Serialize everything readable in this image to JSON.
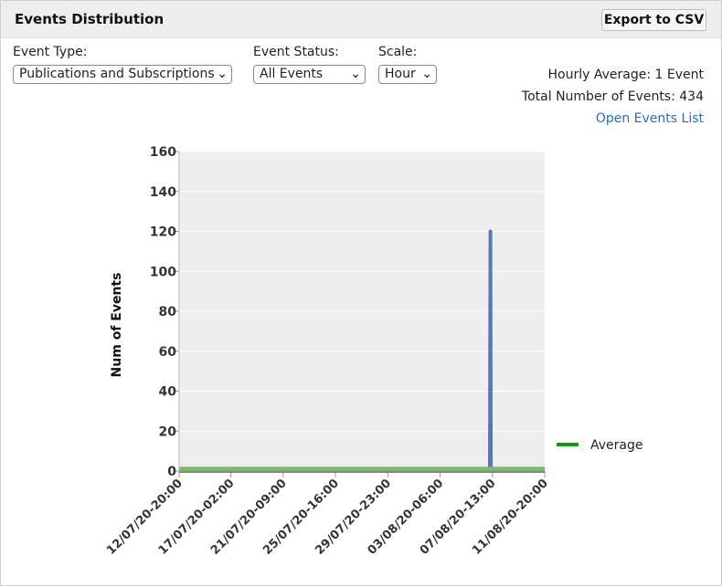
{
  "header": {
    "title": "Events Distribution",
    "export_label": "Export to CSV"
  },
  "filters": {
    "event_type": {
      "label": "Event Type:",
      "value": "Publications and Subscriptions"
    },
    "event_status": {
      "label": "Event Status:",
      "value": "All Events"
    },
    "scale": {
      "label": "Scale:",
      "value": "Hour"
    }
  },
  "stats": {
    "hourly_average": "Hourly Average: 1 Event",
    "total_events": "Total Number of Events: 434",
    "open_events_link": "Open Events List"
  },
  "colors": {
    "plot_background": "#eeeeee",
    "bar": "#5b78b0",
    "average_line": "#7dbb5f",
    "legend_average": "#119911"
  },
  "icons": {
    "dropdown": "chevron-down-icon"
  },
  "chart_data": {
    "type": "line",
    "ylabel": "Num of Events",
    "xlabel": "",
    "ylim": [
      0,
      160
    ],
    "y_ticks": [
      0,
      20,
      40,
      60,
      80,
      100,
      120,
      140,
      160
    ],
    "x_tick_labels": [
      "12/07/20-20:00",
      "17/07/20-02:00",
      "21/07/20-09:00",
      "25/07/20-16:00",
      "29/07/20-23:00",
      "03/08/20-06:00",
      "07/08/20-13:00",
      "11/08/20-20:00"
    ],
    "series": [
      {
        "name": "",
        "points": [
          {
            "x": "12/07/20-20:00",
            "y": 0
          },
          {
            "x": "07/08/20-08:00",
            "y": 0
          },
          {
            "x": "07/08/20-09:00",
            "y": 120
          },
          {
            "x": "07/08/20-10:00",
            "y": 0
          },
          {
            "x": "11/08/20-20:00",
            "y": 0
          }
        ]
      },
      {
        "name": "Average",
        "value": 1
      }
    ],
    "legend": {
      "entries": [
        "Average"
      ],
      "position": "right-bottom"
    },
    "grid": true
  }
}
